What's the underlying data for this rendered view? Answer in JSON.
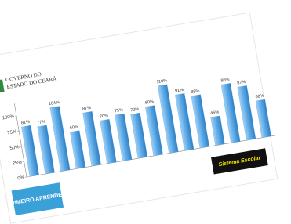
{
  "chart_data": {
    "type": "bar",
    "values": [
      81,
      77,
      104,
      60,
      87,
      70,
      75,
      72,
      80,
      110,
      91,
      85,
      46,
      95,
      87,
      60
    ],
    "value_labels": [
      "81%",
      "77%",
      "104%",
      "60%",
      "87%",
      "70%",
      "75%",
      "72%",
      "80%",
      "110%",
      "91%",
      "85%",
      "46%",
      "95%",
      "87%",
      "60%"
    ],
    "color": "#5aa8e6",
    "ylim": [
      0,
      120
    ],
    "yticks": [
      {
        "value": 0,
        "label": "0%"
      },
      {
        "value": 25,
        "label": "25%"
      },
      {
        "value": 50,
        "label": "50%"
      },
      {
        "value": 75,
        "label": "75%"
      },
      {
        "value": 100,
        "label": "100%"
      }
    ],
    "grid": false
  },
  "logos": {
    "government_line1": "GOVERNO DO",
    "government_line2": "ESTADO DO CEARÁ",
    "program": "PRIMEIRO APRENDER!",
    "system": "Sistema Escolar"
  }
}
